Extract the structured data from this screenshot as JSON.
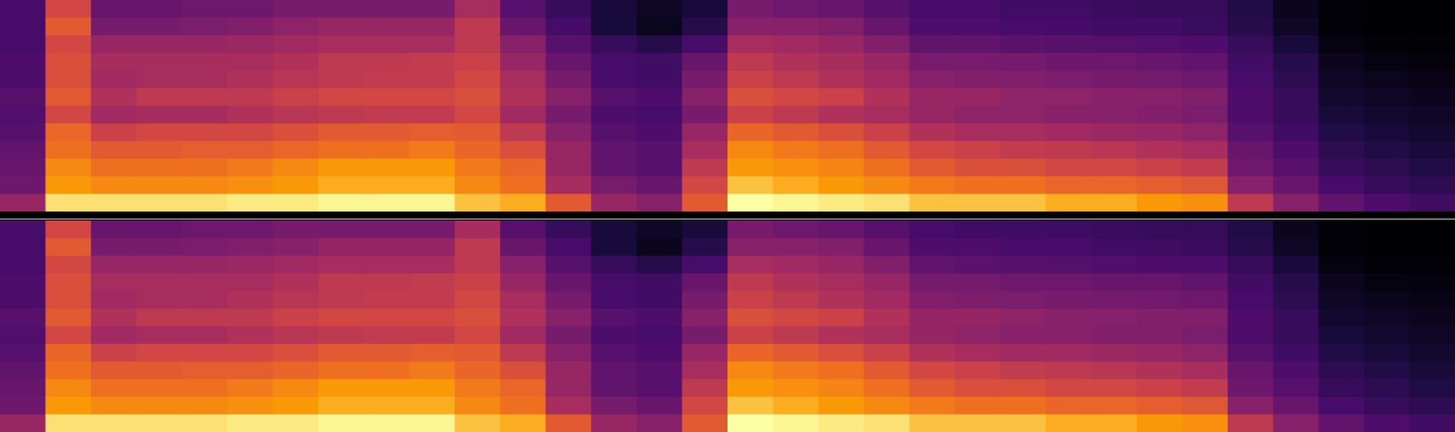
{
  "chart_data": [
    {
      "type": "heatmap",
      "tick_labels": false,
      "cells": [
        [
          30,
          30,
          30,
          32,
          32,
          35,
          33,
          35,
          38,
          40,
          42,
          55
        ],
        [
          70,
          75,
          70,
          72,
          72,
          75,
          70,
          78,
          80,
          85,
          88,
          95
        ],
        [
          40,
          45,
          55,
          60,
          58,
          62,
          58,
          68,
          75,
          80,
          85,
          95
        ],
        [
          40,
          45,
          55,
          60,
          60,
          65,
          60,
          70,
          75,
          80,
          85,
          95
        ],
        [
          42,
          46,
          55,
          60,
          60,
          65,
          60,
          70,
          76,
          80,
          85,
          95
        ],
        [
          42,
          48,
          56,
          60,
          62,
          65,
          62,
          70,
          76,
          82,
          86,
          96
        ],
        [
          45,
          52,
          58,
          62,
          64,
          68,
          64,
          72,
          78,
          85,
          88,
          96
        ],
        [
          45,
          55,
          60,
          65,
          65,
          70,
          65,
          75,
          80,
          88,
          90,
          97
        ],
        [
          45,
          55,
          60,
          65,
          66,
          70,
          66,
          75,
          80,
          88,
          90,
          97
        ],
        [
          45,
          55,
          60,
          66,
          66,
          70,
          66,
          76,
          82,
          88,
          90,
          97
        ],
        [
          60,
          65,
          65,
          68,
          70,
          72,
          70,
          75,
          78,
          82,
          85,
          92
        ],
        [
          35,
          40,
          50,
          55,
          60,
          62,
          58,
          65,
          72,
          78,
          80,
          90
        ],
        [
          25,
          30,
          35,
          40,
          45,
          50,
          45,
          50,
          55,
          55,
          60,
          75
        ],
        [
          15,
          15,
          25,
          30,
          30,
          35,
          32,
          35,
          38,
          38,
          45,
          55
        ],
        [
          10,
          8,
          20,
          28,
          28,
          32,
          30,
          32,
          35,
          35,
          40,
          50
        ],
        [
          15,
          20,
          30,
          40,
          45,
          50,
          45,
          55,
          60,
          65,
          70,
          75
        ],
        [
          45,
          50,
          60,
          65,
          68,
          72,
          68,
          78,
          85,
          88,
          92,
          98
        ],
        [
          42,
          50,
          58,
          62,
          65,
          70,
          65,
          75,
          82,
          86,
          90,
          97
        ],
        [
          40,
          48,
          55,
          60,
          62,
          68,
          62,
          72,
          80,
          84,
          88,
          96
        ],
        [
          35,
          40,
          48,
          55,
          58,
          62,
          60,
          68,
          75,
          80,
          85,
          95
        ],
        [
          30,
          32,
          38,
          45,
          50,
          55,
          55,
          62,
          70,
          75,
          82,
          92
        ],
        [
          30,
          32,
          38,
          45,
          48,
          55,
          52,
          60,
          68,
          72,
          80,
          92
        ],
        [
          28,
          30,
          36,
          44,
          48,
          52,
          52,
          60,
          66,
          72,
          80,
          92
        ],
        [
          28,
          30,
          35,
          42,
          46,
          52,
          50,
          58,
          65,
          70,
          78,
          90
        ],
        [
          26,
          28,
          34,
          42,
          45,
          50,
          50,
          56,
          64,
          70,
          78,
          90
        ],
        [
          25,
          28,
          33,
          40,
          44,
          50,
          48,
          55,
          62,
          68,
          76,
          88
        ],
        [
          24,
          26,
          32,
          38,
          42,
          48,
          46,
          52,
          60,
          66,
          74,
          86
        ],
        [
          18,
          20,
          25,
          28,
          30,
          32,
          32,
          35,
          40,
          42,
          50,
          65
        ],
        [
          8,
          10,
          15,
          20,
          22,
          25,
          25,
          28,
          32,
          35,
          40,
          50
        ],
        [
          3,
          3,
          5,
          8,
          10,
          12,
          15,
          18,
          22,
          25,
          30,
          38
        ],
        [
          2,
          2,
          3,
          5,
          8,
          10,
          12,
          15,
          18,
          22,
          25,
          32
        ],
        [
          2,
          2,
          3,
          4,
          6,
          8,
          10,
          12,
          15,
          18,
          22,
          28
        ]
      ]
    },
    {
      "type": "heatmap",
      "tick_labels": false,
      "cells": [
        [
          30,
          30,
          30,
          32,
          32,
          35,
          33,
          35,
          38,
          40,
          42,
          55
        ],
        [
          70,
          75,
          70,
          72,
          72,
          75,
          70,
          78,
          80,
          85,
          88,
          95
        ],
        [
          40,
          45,
          55,
          60,
          58,
          62,
          58,
          68,
          75,
          80,
          85,
          95
        ],
        [
          40,
          45,
          55,
          60,
          60,
          65,
          60,
          70,
          75,
          80,
          85,
          95
        ],
        [
          42,
          46,
          55,
          60,
          60,
          65,
          60,
          70,
          76,
          80,
          85,
          95
        ],
        [
          42,
          48,
          56,
          60,
          62,
          65,
          62,
          70,
          76,
          82,
          86,
          96
        ],
        [
          45,
          50,
          58,
          62,
          64,
          68,
          64,
          72,
          78,
          85,
          88,
          96
        ],
        [
          45,
          54,
          60,
          65,
          65,
          70,
          65,
          75,
          80,
          88,
          90,
          97
        ],
        [
          45,
          54,
          60,
          65,
          66,
          70,
          66,
          75,
          80,
          88,
          90,
          97
        ],
        [
          45,
          54,
          60,
          66,
          66,
          70,
          66,
          76,
          82,
          88,
          90,
          97
        ],
        [
          60,
          65,
          65,
          68,
          70,
          72,
          70,
          75,
          78,
          82,
          85,
          92
        ],
        [
          35,
          40,
          50,
          55,
          60,
          62,
          58,
          65,
          72,
          78,
          80,
          90
        ],
        [
          25,
          30,
          35,
          40,
          45,
          50,
          45,
          50,
          55,
          55,
          60,
          75
        ],
        [
          15,
          15,
          25,
          30,
          30,
          35,
          32,
          35,
          38,
          38,
          45,
          55
        ],
        [
          10,
          8,
          20,
          28,
          28,
          32,
          30,
          32,
          35,
          35,
          40,
          50
        ],
        [
          15,
          20,
          30,
          40,
          45,
          50,
          45,
          55,
          60,
          65,
          70,
          75
        ],
        [
          45,
          50,
          60,
          65,
          68,
          72,
          68,
          78,
          85,
          88,
          92,
          98
        ],
        [
          42,
          50,
          58,
          62,
          65,
          70,
          65,
          75,
          82,
          86,
          90,
          97
        ],
        [
          40,
          48,
          55,
          60,
          62,
          68,
          62,
          72,
          80,
          84,
          88,
          96
        ],
        [
          35,
          40,
          48,
          55,
          58,
          62,
          60,
          68,
          75,
          80,
          85,
          95
        ],
        [
          30,
          32,
          38,
          44,
          48,
          54,
          54,
          62,
          70,
          75,
          82,
          92
        ],
        [
          28,
          32,
          36,
          44,
          47,
          54,
          52,
          60,
          68,
          72,
          80,
          92
        ],
        [
          28,
          30,
          35,
          42,
          46,
          52,
          50,
          58,
          66,
          72,
          80,
          92
        ],
        [
          27,
          30,
          34,
          42,
          45,
          50,
          50,
          58,
          65,
          70,
          78,
          90
        ],
        [
          26,
          28,
          33,
          40,
          44,
          50,
          48,
          56,
          64,
          70,
          78,
          90
        ],
        [
          25,
          27,
          32,
          40,
          43,
          48,
          48,
          55,
          62,
          68,
          76,
          88
        ],
        [
          24,
          26,
          32,
          38,
          42,
          48,
          46,
          52,
          60,
          66,
          74,
          86
        ],
        [
          18,
          20,
          25,
          28,
          30,
          32,
          32,
          35,
          40,
          42,
          50,
          65
        ],
        [
          8,
          10,
          15,
          20,
          22,
          25,
          25,
          28,
          32,
          35,
          40,
          50
        ],
        [
          3,
          3,
          5,
          8,
          10,
          12,
          15,
          18,
          22,
          25,
          30,
          38
        ],
        [
          2,
          2,
          3,
          5,
          8,
          10,
          12,
          15,
          18,
          22,
          25,
          32
        ],
        [
          2,
          2,
          3,
          4,
          6,
          8,
          10,
          12,
          15,
          18,
          22,
          28
        ]
      ]
    }
  ]
}
